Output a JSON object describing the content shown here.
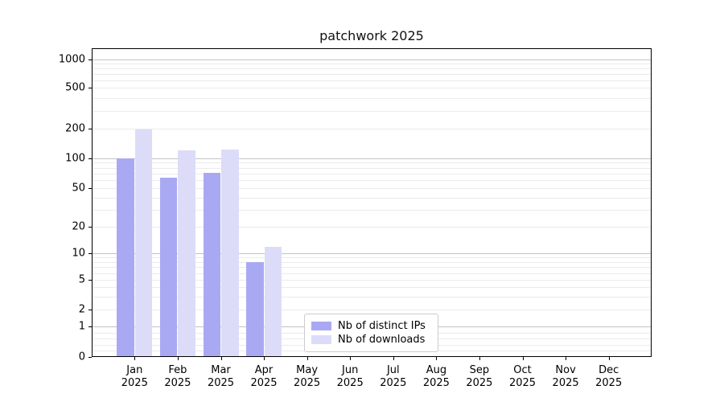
{
  "chart_data": {
    "type": "bar",
    "title": "patchwork 2025",
    "yscale": "symlog",
    "ylim": [
      0,
      1000
    ],
    "grid": true,
    "yticks": [
      0,
      1,
      2,
      5,
      10,
      20,
      50,
      100,
      200,
      500,
      1000
    ],
    "categories": [
      "Jan",
      "Feb",
      "Mar",
      "Apr",
      "May",
      "Jun",
      "Jul",
      "Aug",
      "Sep",
      "Oct",
      "Nov",
      "Dec"
    ],
    "x_year_line": "2025",
    "series": [
      {
        "name": "Nb of distinct IPs",
        "color": "#a9a9f3",
        "values": [
          100,
          64,
          71,
          8,
          0,
          0,
          0,
          0,
          0,
          0,
          0,
          0
        ]
      },
      {
        "name": "Nb of downloads",
        "color": "#dcdcf9",
        "values": [
          197,
          120,
          123,
          12,
          0,
          0,
          0,
          0,
          0,
          0,
          0,
          0
        ]
      }
    ],
    "legend_position": "lower center"
  }
}
